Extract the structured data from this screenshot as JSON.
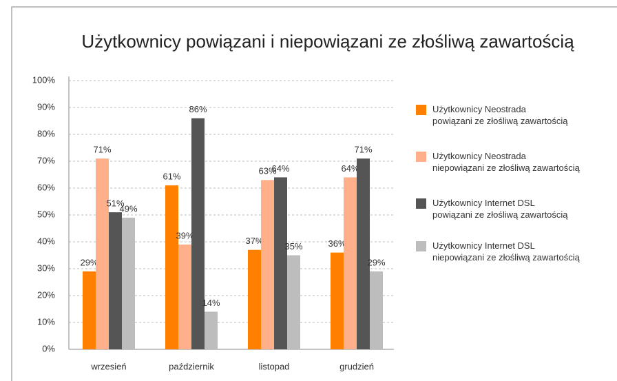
{
  "chart_data": {
    "type": "bar",
    "title": "Użytkownicy powiązani i niepowiązani ze złośliwą zawartością",
    "categories": [
      "wrzesień",
      "październik",
      "listopad",
      "grudzień"
    ],
    "series": [
      {
        "name": "Użytkownicy Neostrada\npowiązani ze złośliwą zawartością",
        "color": "#ff7f00",
        "values": [
          29,
          61,
          37,
          36
        ],
        "value_labels": [
          "29%",
          "61%",
          "37%",
          "36%"
        ]
      },
      {
        "name": "Użytkownicy Neostrada\nniepowiązani ze złośliwą zawartością",
        "color": "#ffb08a",
        "values": [
          71,
          39,
          63,
          64
        ],
        "value_labels": [
          "71%",
          "39%",
          "63%",
          "64%"
        ]
      },
      {
        "name": "Użytkownicy Internet DSL\npowiązani ze złośliwą zawartością",
        "color": "#555555",
        "values": [
          51,
          86,
          64,
          71
        ],
        "value_labels": [
          "51%",
          "86%",
          "64%",
          "71%"
        ]
      },
      {
        "name": "Użytkownicy Internet DSL\nniepowiązani ze złośliwą zawartością",
        "color": "#bdbdbd",
        "values": [
          49,
          14,
          35,
          29
        ],
        "value_labels": [
          "49%",
          "14%",
          "35%",
          "29%"
        ]
      }
    ],
    "ylim": [
      0,
      100
    ],
    "yticks": [
      {
        "value": 0,
        "label": "0%"
      },
      {
        "value": 10,
        "label": "10%"
      },
      {
        "value": 20,
        "label": "20%"
      },
      {
        "value": 30,
        "label": "30%"
      },
      {
        "value": 40,
        "label": "40%"
      },
      {
        "value": 50,
        "label": "50%"
      },
      {
        "value": 60,
        "label": "60%"
      },
      {
        "value": 70,
        "label": "70%"
      },
      {
        "value": 80,
        "label": "80%"
      },
      {
        "value": 90,
        "label": "90%"
      },
      {
        "value": 100,
        "label": "100%"
      }
    ],
    "grid": true,
    "legend": "right"
  }
}
